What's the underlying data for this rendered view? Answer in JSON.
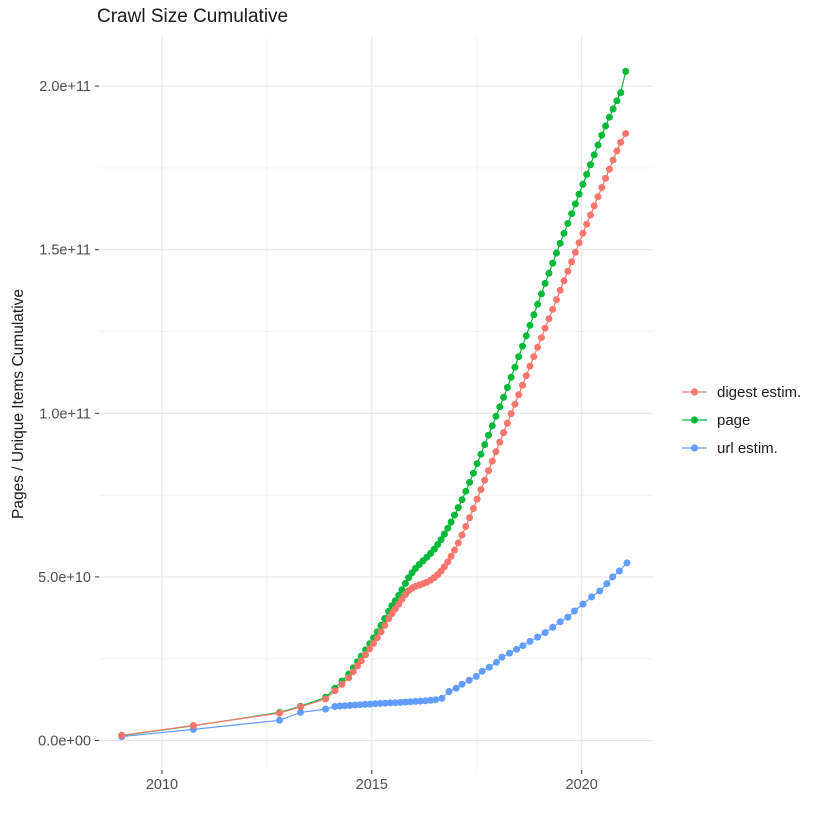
{
  "chart_data": {
    "type": "scatter",
    "title": "Crawl Size Cumulative",
    "xlabel": "",
    "ylabel": "Pages / Unique Items Cumulative",
    "legend_position": "right",
    "background": "#FFFFFF",
    "grid_major_color": "#E6E6E6",
    "grid_minor_color": "#F0F0F0",
    "axis_text_color": "#4D4D4D",
    "tick_mark_color": "#333333",
    "xlim": [
      2008.5,
      2021.7
    ],
    "ylim": [
      -9000000000.0,
      215000000000.0
    ],
    "x_ticks": {
      "values": [
        2010,
        2015,
        2020
      ],
      "labels": [
        "2010",
        "2015",
        "2020"
      ],
      "minor": [
        2012.5,
        2017.5
      ]
    },
    "y_ticks": {
      "values": [
        0,
        50000000000.0,
        100000000000.0,
        150000000000.0,
        200000000000.0
      ],
      "labels": [
        "0.0e+00",
        "5.0e+10",
        "1.0e+11",
        "1.5e+11",
        "2.0e+11"
      ],
      "minor": [
        25000000000.0,
        75000000000.0,
        125000000000.0,
        175000000000.0
      ]
    },
    "draw_order": [
      1,
      2,
      0
    ],
    "series": [
      {
        "id": "digest-estim",
        "name": "digest estim.",
        "color": "#F8766D",
        "points": [
          [
            2009.04,
            1600000000.0
          ],
          [
            2010.75,
            4600000000.0
          ],
          [
            2012.8,
            8400000000.0
          ],
          [
            2013.3,
            10300000000.0
          ],
          [
            2013.9,
            12700000000.0
          ],
          [
            2014.12,
            15200000000.0
          ],
          [
            2014.29,
            17200000000.0
          ],
          [
            2014.45,
            19200000000.0
          ],
          [
            2014.56,
            21000000000.0
          ],
          [
            2014.66,
            22800000000.0
          ],
          [
            2014.75,
            24400000000.0
          ],
          [
            2014.85,
            26200000000.0
          ],
          [
            2014.95,
            28000000000.0
          ],
          [
            2015.04,
            29700000000.0
          ],
          [
            2015.13,
            31400000000.0
          ],
          [
            2015.22,
            33200000000.0
          ],
          [
            2015.31,
            35200000000.0
          ],
          [
            2015.4,
            37200000000.0
          ],
          [
            2015.48,
            38800000000.0
          ],
          [
            2015.56,
            40200000000.0
          ],
          [
            2015.64,
            41700000000.0
          ],
          [
            2015.72,
            43200000000.0
          ],
          [
            2015.8,
            44600000000.0
          ],
          [
            2015.88,
            45800000000.0
          ],
          [
            2015.96,
            46600000000.0
          ],
          [
            2016.04,
            47100000000.0
          ],
          [
            2016.13,
            47500000000.0
          ],
          [
            2016.22,
            47900000000.0
          ],
          [
            2016.31,
            48400000000.0
          ],
          [
            2016.4,
            49000000000.0
          ],
          [
            2016.49,
            49800000000.0
          ],
          [
            2016.57,
            50700000000.0
          ],
          [
            2016.65,
            51800000000.0
          ],
          [
            2016.73,
            53100000000.0
          ],
          [
            2016.81,
            54600000000.0
          ],
          [
            2016.89,
            56300000000.0
          ],
          [
            2016.97,
            58200000000.0
          ],
          [
            2017.06,
            60400000000.0
          ],
          [
            2017.15,
            62800000000.0
          ],
          [
            2017.24,
            65400000000.0
          ],
          [
            2017.33,
            68100000000.0
          ],
          [
            2017.42,
            70900000000.0
          ],
          [
            2017.51,
            73800000000.0
          ],
          [
            2017.6,
            76700000000.0
          ],
          [
            2017.69,
            79600000000.0
          ],
          [
            2017.78,
            82500000000.0
          ],
          [
            2017.87,
            85400000000.0
          ],
          [
            2017.96,
            88300000000.0
          ],
          [
            2018.05,
            91200000000.0
          ],
          [
            2018.14,
            94100000000.0
          ],
          [
            2018.23,
            97000000000.0
          ],
          [
            2018.32,
            99900000000.0
          ],
          [
            2018.41,
            102800000000.0
          ],
          [
            2018.5,
            105700000000.0
          ],
          [
            2018.59,
            108600000000.0
          ],
          [
            2018.68,
            111500000000.0
          ],
          [
            2018.77,
            114400000000.0
          ],
          [
            2018.86,
            117300000000.0
          ],
          [
            2018.95,
            120200000000.0
          ],
          [
            2019.04,
            123100000000.0
          ],
          [
            2019.13,
            126000000000.0
          ],
          [
            2019.22,
            128900000000.0
          ],
          [
            2019.31,
            131800000000.0
          ],
          [
            2019.4,
            134700000000.0
          ],
          [
            2019.49,
            137600000000.0
          ],
          [
            2019.58,
            140500000000.0
          ],
          [
            2019.67,
            143400000000.0
          ],
          [
            2019.76,
            146300000000.0
          ],
          [
            2019.85,
            149200000000.0
          ],
          [
            2019.94,
            152100000000.0
          ],
          [
            2020.03,
            155000000000.0
          ],
          [
            2020.12,
            157800000000.0
          ],
          [
            2020.21,
            160600000000.0
          ],
          [
            2020.3,
            163400000000.0
          ],
          [
            2020.39,
            166200000000.0
          ],
          [
            2020.48,
            169000000000.0
          ],
          [
            2020.57,
            171800000000.0
          ],
          [
            2020.66,
            174600000000.0
          ],
          [
            2020.75,
            177400000000.0
          ],
          [
            2020.84,
            180200000000.0
          ],
          [
            2020.93,
            182800000000.0
          ],
          [
            2021.05,
            185500000000.0
          ]
        ]
      },
      {
        "id": "page",
        "name": "page",
        "color": "#00BA38",
        "points": [
          [
            2009.04,
            1500000000.0
          ],
          [
            2010.75,
            4500000000.0
          ],
          [
            2012.8,
            8600000000.0
          ],
          [
            2013.3,
            10500000000.0
          ],
          [
            2013.9,
            13200000000.0
          ],
          [
            2014.12,
            16000000000.0
          ],
          [
            2014.29,
            18200000000.0
          ],
          [
            2014.45,
            20300000000.0
          ],
          [
            2014.56,
            22200000000.0
          ],
          [
            2014.66,
            24100000000.0
          ],
          [
            2014.75,
            25800000000.0
          ],
          [
            2014.85,
            27700000000.0
          ],
          [
            2014.95,
            29600000000.0
          ],
          [
            2015.04,
            31400000000.0
          ],
          [
            2015.13,
            33200000000.0
          ],
          [
            2015.22,
            35200000000.0
          ],
          [
            2015.31,
            37300000000.0
          ],
          [
            2015.4,
            39500000000.0
          ],
          [
            2015.48,
            41200000000.0
          ],
          [
            2015.56,
            42700000000.0
          ],
          [
            2015.64,
            44400000000.0
          ],
          [
            2015.72,
            46100000000.0
          ],
          [
            2015.8,
            48000000000.0
          ],
          [
            2015.88,
            49800000000.0
          ],
          [
            2015.96,
            51300000000.0
          ],
          [
            2016.04,
            52600000000.0
          ],
          [
            2016.13,
            53800000000.0
          ],
          [
            2016.22,
            54900000000.0
          ],
          [
            2016.31,
            56000000000.0
          ],
          [
            2016.4,
            57200000000.0
          ],
          [
            2016.49,
            58500000000.0
          ],
          [
            2016.57,
            59900000000.0
          ],
          [
            2016.65,
            61400000000.0
          ],
          [
            2016.73,
            63100000000.0
          ],
          [
            2016.81,
            64900000000.0
          ],
          [
            2016.89,
            66800000000.0
          ],
          [
            2016.97,
            68900000000.0
          ],
          [
            2017.06,
            71200000000.0
          ],
          [
            2017.15,
            73600000000.0
          ],
          [
            2017.24,
            76200000000.0
          ],
          [
            2017.33,
            78900000000.0
          ],
          [
            2017.42,
            81700000000.0
          ],
          [
            2017.51,
            84600000000.0
          ],
          [
            2017.6,
            87500000000.0
          ],
          [
            2017.69,
            90400000000.0
          ],
          [
            2017.78,
            93300000000.0
          ],
          [
            2017.87,
            96200000000.0
          ],
          [
            2017.96,
            99100000000.0
          ],
          [
            2018.05,
            102000000000.0
          ],
          [
            2018.14,
            104900000000.0
          ],
          [
            2018.23,
            107900000000.0
          ],
          [
            2018.32,
            111000000000.0
          ],
          [
            2018.41,
            114100000000.0
          ],
          [
            2018.5,
            117300000000.0
          ],
          [
            2018.59,
            120500000000.0
          ],
          [
            2018.68,
            123700000000.0
          ],
          [
            2018.77,
            126900000000.0
          ],
          [
            2018.86,
            130100000000.0
          ],
          [
            2018.95,
            133300000000.0
          ],
          [
            2019.04,
            136500000000.0
          ],
          [
            2019.13,
            139700000000.0
          ],
          [
            2019.22,
            142800000000.0
          ],
          [
            2019.31,
            145900000000.0
          ],
          [
            2019.4,
            149000000000.0
          ],
          [
            2019.49,
            152000000000.0
          ],
          [
            2019.58,
            155000000000.0
          ],
          [
            2019.67,
            158000000000.0
          ],
          [
            2019.76,
            161000000000.0
          ],
          [
            2019.85,
            164000000000.0
          ],
          [
            2019.94,
            167000000000.0
          ],
          [
            2020.03,
            170000000000.0
          ],
          [
            2020.12,
            173000000000.0
          ],
          [
            2020.21,
            176000000000.0
          ],
          [
            2020.3,
            179000000000.0
          ],
          [
            2020.39,
            182000000000.0
          ],
          [
            2020.48,
            185000000000.0
          ],
          [
            2020.57,
            187800000000.0
          ],
          [
            2020.66,
            190500000000.0
          ],
          [
            2020.75,
            193000000000.0
          ],
          [
            2020.84,
            195500000000.0
          ],
          [
            2020.93,
            198000000000.0
          ],
          [
            2021.05,
            204500000000.0
          ]
        ]
      },
      {
        "id": "url-estim",
        "name": "url estim.",
        "color": "#619CFF",
        "points": [
          [
            2009.04,
            1200000000.0
          ],
          [
            2010.75,
            3400000000.0
          ],
          [
            2012.8,
            6200000000.0
          ],
          [
            2013.3,
            8600000000.0
          ],
          [
            2013.9,
            9600000000.0
          ],
          [
            2014.12,
            10400000000.0
          ],
          [
            2014.24,
            10550000000.0
          ],
          [
            2014.36,
            10650000000.0
          ],
          [
            2014.48,
            10750000000.0
          ],
          [
            2014.6,
            10850000000.0
          ],
          [
            2014.72,
            10950000000.0
          ],
          [
            2014.84,
            11050000000.0
          ],
          [
            2014.96,
            11150000000.0
          ],
          [
            2015.08,
            11250000000.0
          ],
          [
            2015.2,
            11350000000.0
          ],
          [
            2015.32,
            11420000000.0
          ],
          [
            2015.44,
            11500000000.0
          ],
          [
            2015.56,
            11580000000.0
          ],
          [
            2015.68,
            11660000000.0
          ],
          [
            2015.8,
            11740000000.0
          ],
          [
            2015.92,
            11850000000.0
          ],
          [
            2016.04,
            11950000000.0
          ],
          [
            2016.16,
            12050000000.0
          ],
          [
            2016.28,
            12150000000.0
          ],
          [
            2016.4,
            12300000000.0
          ],
          [
            2016.52,
            12450000000.0
          ],
          [
            2016.67,
            12900000000.0
          ],
          [
            2016.84,
            15000000000.0
          ],
          [
            2017.01,
            16000000000.0
          ],
          [
            2017.15,
            17200000000.0
          ],
          [
            2017.32,
            18400000000.0
          ],
          [
            2017.49,
            19600000000.0
          ],
          [
            2017.63,
            21200000000.0
          ],
          [
            2017.8,
            22400000000.0
          ],
          [
            2017.97,
            23900000000.0
          ],
          [
            2018.1,
            25500000000.0
          ],
          [
            2018.28,
            26700000000.0
          ],
          [
            2018.45,
            27900000000.0
          ],
          [
            2018.6,
            29000000000.0
          ],
          [
            2018.77,
            30300000000.0
          ],
          [
            2018.95,
            31600000000.0
          ],
          [
            2019.13,
            33000000000.0
          ],
          [
            2019.31,
            34600000000.0
          ],
          [
            2019.49,
            36300000000.0
          ],
          [
            2019.67,
            37700000000.0
          ],
          [
            2019.83,
            39600000000.0
          ],
          [
            2020.03,
            41700000000.0
          ],
          [
            2020.24,
            43900000000.0
          ],
          [
            2020.43,
            45700000000.0
          ],
          [
            2020.6,
            47900000000.0
          ],
          [
            2020.74,
            50000000000.0
          ],
          [
            2020.9,
            51800000000.0
          ],
          [
            2021.08,
            54300000000.0
          ]
        ]
      }
    ]
  }
}
